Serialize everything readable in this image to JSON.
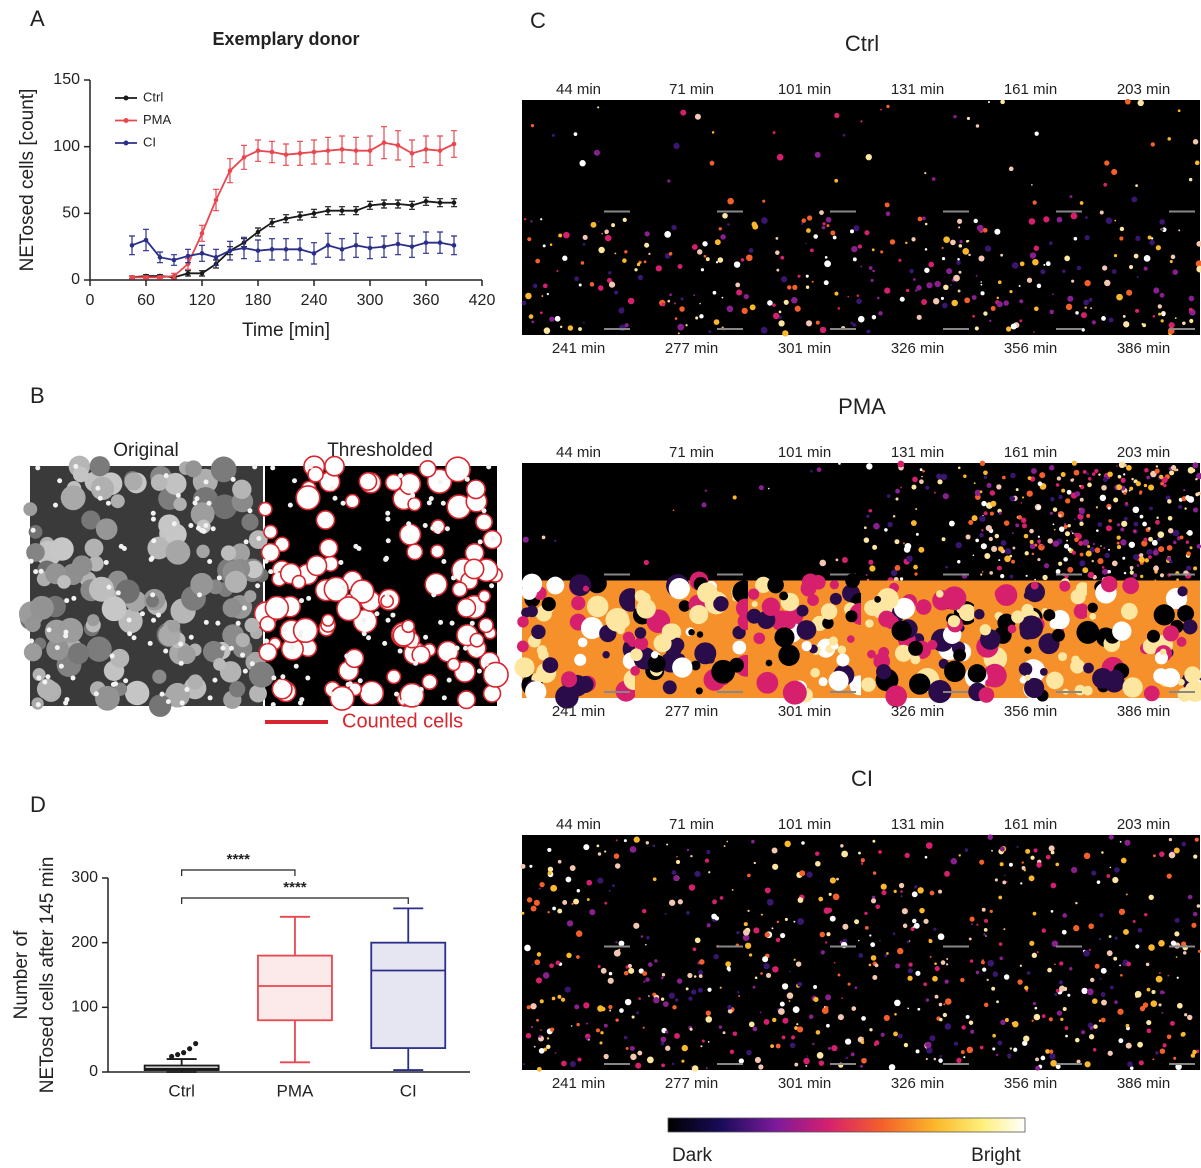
{
  "panel_labels": [
    "A",
    "B",
    "C",
    "D"
  ],
  "chart_data": [
    {
      "type": "line",
      "title": "Exemplary donor",
      "x_label": "Time [min]",
      "y_label": "NETosed cells [count]",
      "x": [
        45,
        60,
        75,
        90,
        105,
        120,
        135,
        150,
        165,
        180,
        195,
        210,
        225,
        240,
        255,
        270,
        285,
        300,
        315,
        330,
        345,
        360,
        375,
        390
      ],
      "xlim": [
        0,
        420
      ],
      "xticks": [
        0,
        60,
        120,
        180,
        240,
        300,
        360,
        420
      ],
      "ylim": [
        0,
        150
      ],
      "yticks": [
        0,
        50,
        100,
        150
      ],
      "legend": "upper left",
      "series": [
        {
          "name": "Ctrl",
          "color": "#1a1a1a",
          "values": [
            2,
            3,
            3,
            2,
            5,
            5,
            12,
            22,
            28,
            36,
            43,
            46,
            48,
            50,
            52,
            52,
            52,
            56,
            57,
            57,
            56,
            59,
            58,
            58
          ],
          "errors": [
            1,
            1,
            1,
            1,
            2,
            2,
            3,
            3,
            3,
            3,
            3,
            3,
            3,
            3,
            3,
            3,
            3,
            3,
            3,
            3,
            3,
            3,
            3,
            3
          ]
        },
        {
          "name": "PMA",
          "color": "#e8474f",
          "values": [
            2,
            2,
            2,
            3,
            12,
            35,
            60,
            82,
            92,
            97,
            96,
            94,
            95,
            96,
            97,
            98,
            97,
            97,
            103,
            101,
            95,
            98,
            97,
            102
          ],
          "errors": [
            1,
            1,
            1,
            2,
            4,
            6,
            8,
            9,
            9,
            8,
            8,
            8,
            9,
            9,
            10,
            10,
            10,
            11,
            12,
            11,
            10,
            10,
            11,
            10
          ]
        },
        {
          "name": "CI",
          "color": "#2b2f8a",
          "values": [
            26,
            30,
            17,
            15,
            18,
            20,
            17,
            22,
            24,
            22,
            23,
            23,
            23,
            20,
            26,
            23,
            26,
            24,
            25,
            27,
            25,
            28,
            28,
            26
          ],
          "errors": [
            7,
            8,
            4,
            4,
            5,
            6,
            6,
            7,
            8,
            8,
            8,
            8,
            8,
            8,
            9,
            8,
            9,
            8,
            8,
            8,
            8,
            8,
            8,
            7
          ]
        }
      ]
    },
    {
      "type": "box",
      "y_label": [
        "Number of",
        "NETosed cells after 145 min"
      ],
      "categories": [
        "Ctrl",
        "PMA",
        "CI"
      ],
      "ylim": [
        0,
        300
      ],
      "yticks": [
        0,
        100,
        200,
        300
      ],
      "significance": [
        "****",
        "****"
      ],
      "boxes": [
        {
          "color": "#1a1a1a",
          "min": 0,
          "q1": 3,
          "median": 5,
          "q3": 10,
          "max": 20,
          "outliers": [
            24,
            27,
            30,
            36,
            44
          ]
        },
        {
          "color": "#e8474f",
          "min": 15,
          "q1": 80,
          "median": 133,
          "q3": 180,
          "max": 240,
          "outliers": []
        },
        {
          "color": "#2b2f8a",
          "min": 3,
          "q1": 37,
          "median": 157,
          "q3": 200,
          "max": 253,
          "outliers": []
        }
      ]
    }
  ],
  "panel_b": {
    "titles": [
      "Original",
      "Thresholded"
    ],
    "legend": "Counted cells"
  },
  "panel_c": {
    "groups": [
      {
        "title": "Ctrl",
        "top": [
          "44 min",
          "71 min",
          "101 min",
          "131 min",
          "161 min",
          "203 min"
        ],
        "bottom": [
          "241 min",
          "277 min",
          "301 min",
          "326 min",
          "356 min",
          "386 min"
        ]
      },
      {
        "title": "PMA",
        "top": [
          "44 min",
          "71 min",
          "101 min",
          "131 min",
          "161 min",
          "203 min"
        ],
        "bottom": [
          "241 min",
          "277 min",
          "301 min",
          "326 min",
          "356 min",
          "386 min"
        ]
      },
      {
        "title": "CI",
        "top": [
          "44 min",
          "71 min",
          "101 min",
          "131 min",
          "161 min",
          "203 min"
        ],
        "bottom": [
          "241 min",
          "277 min",
          "301 min",
          "326 min",
          "356 min",
          "386 min"
        ]
      }
    ],
    "colorbar": {
      "low": "Dark",
      "high": "Bright"
    }
  }
}
